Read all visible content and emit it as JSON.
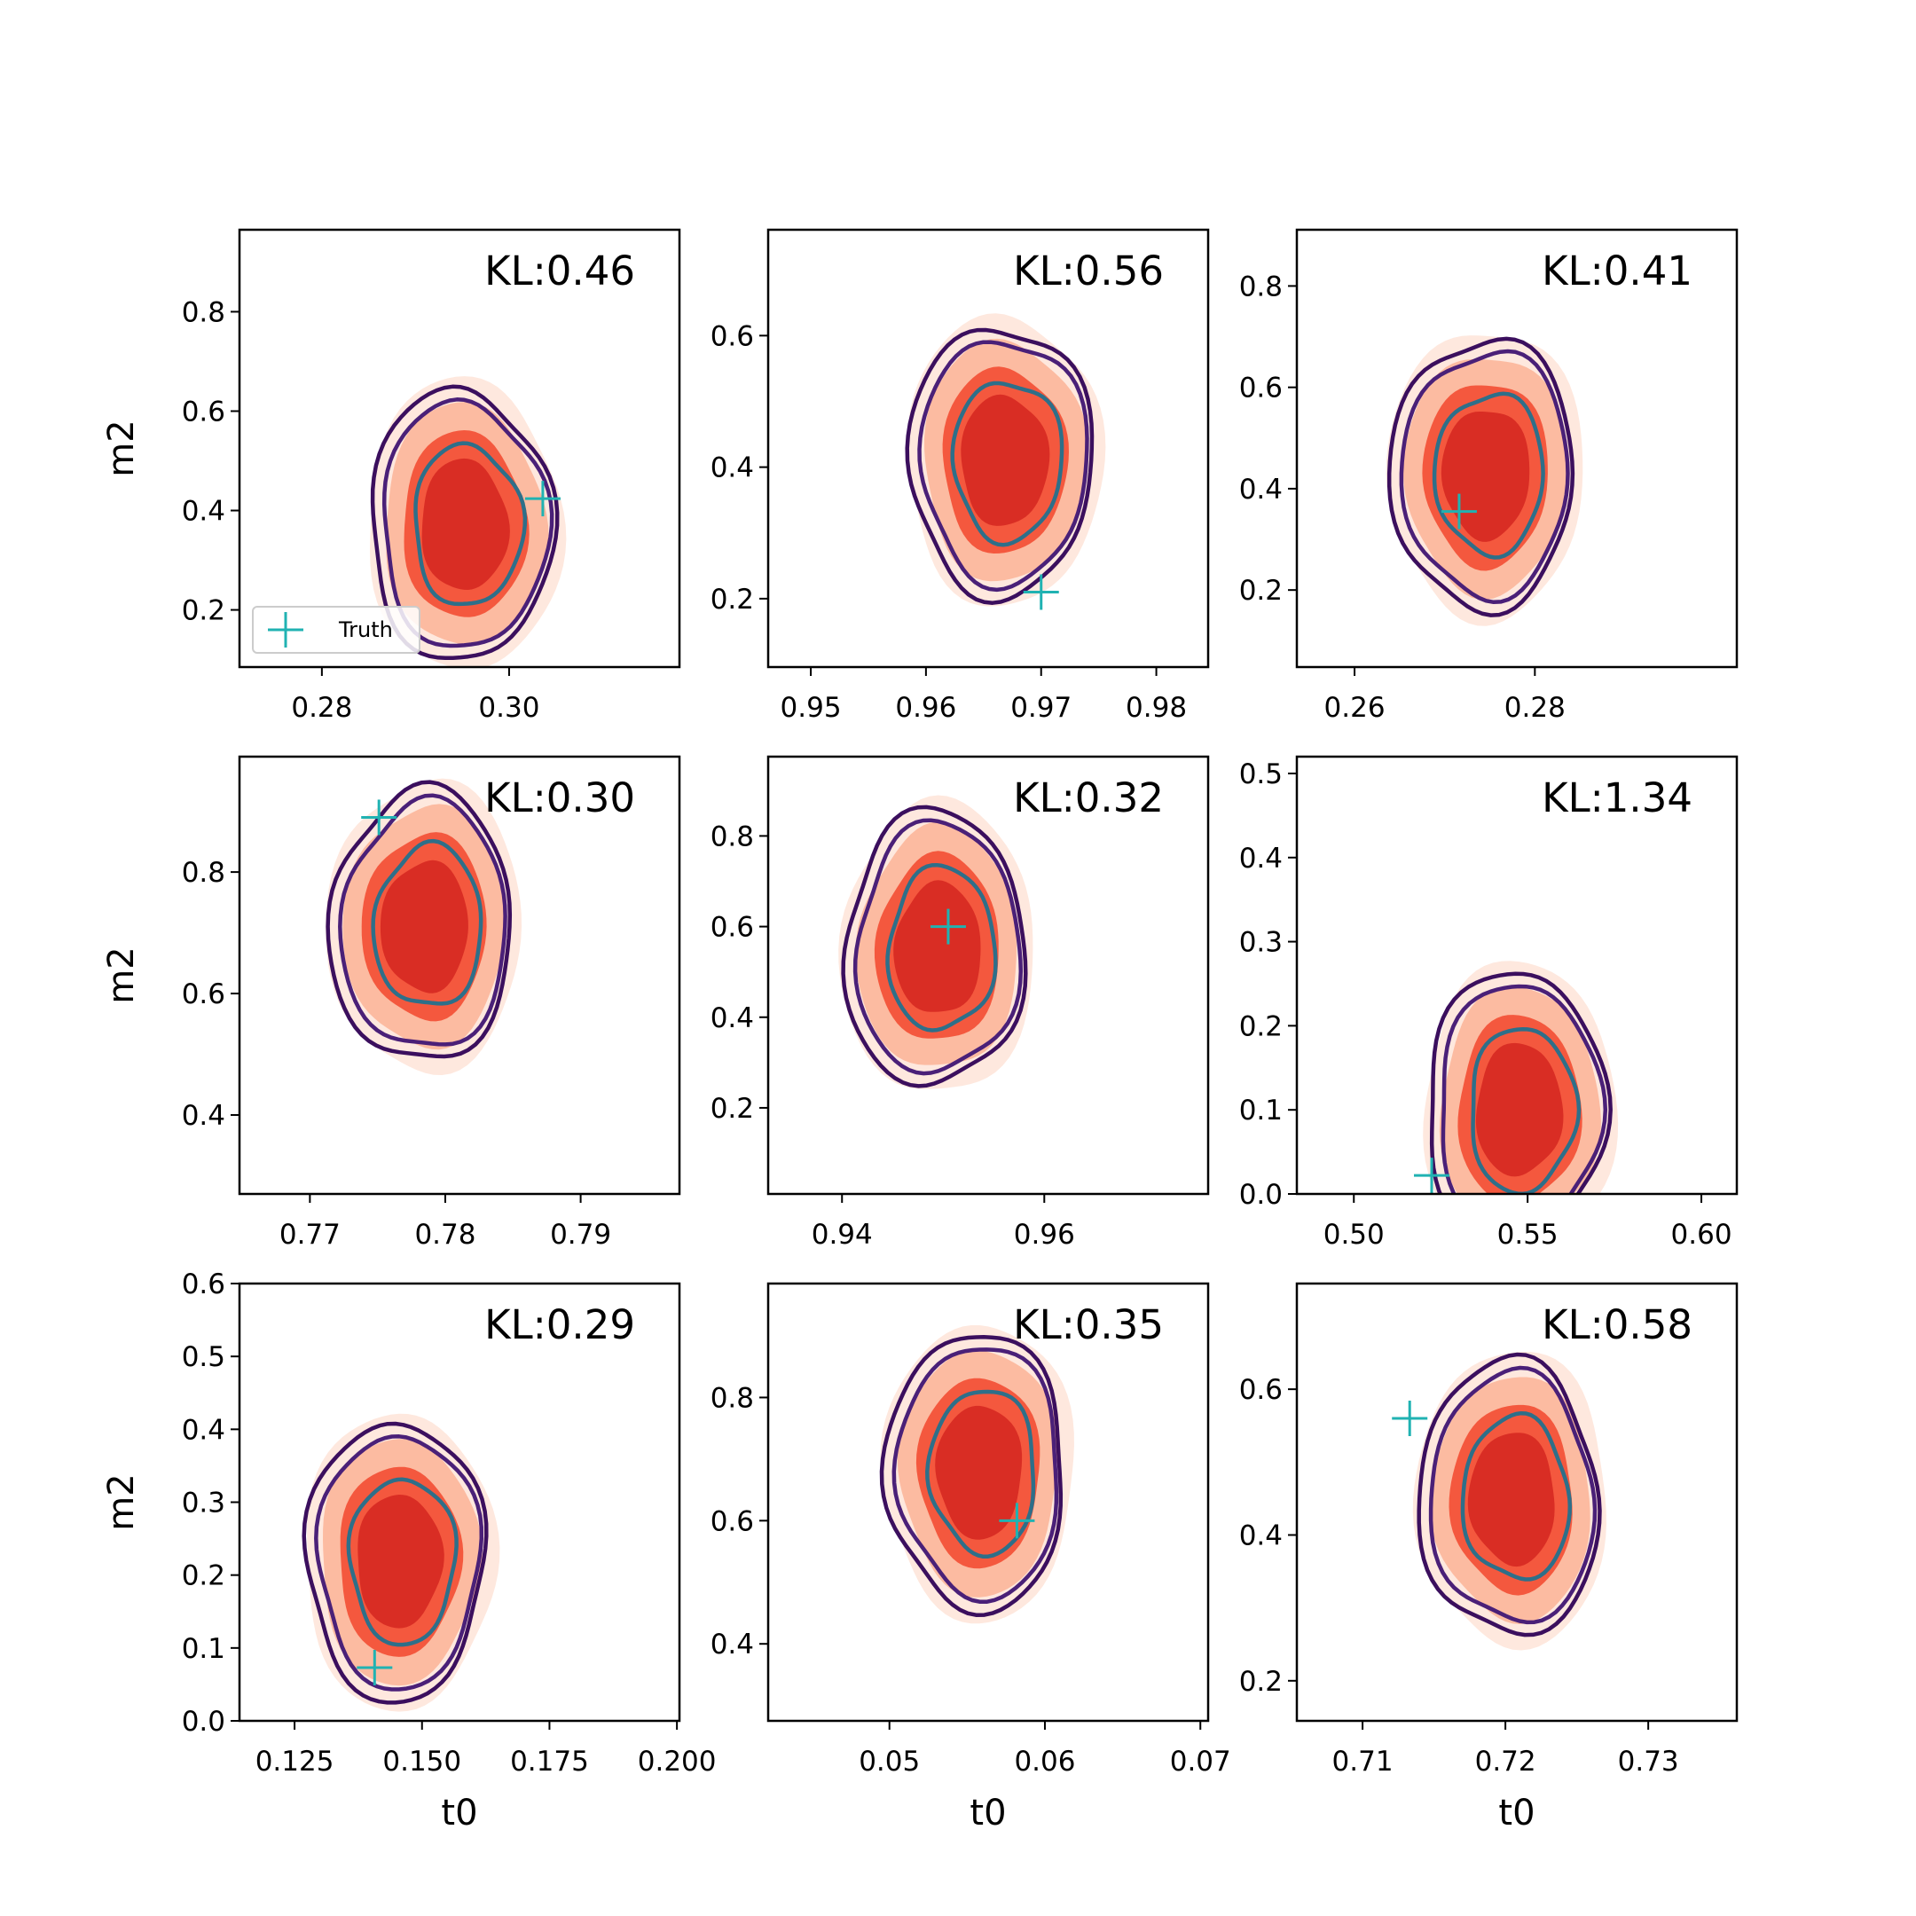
{
  "chart_data": [
    {
      "type": "contour",
      "kl_label": "KL:0.46",
      "xlabel": "",
      "ylabel": "m2",
      "xlim": [
        0.2712,
        0.3182
      ],
      "ylim": [
        0.085,
        0.965
      ],
      "xticks": [
        0.28,
        0.3
      ],
      "xtick_labels": [
        "0.28",
        "0.30"
      ],
      "yticks": [
        0.2,
        0.4,
        0.6,
        0.8
      ],
      "ytick_labels": [
        "0.2",
        "0.4",
        "0.6",
        "0.8"
      ],
      "truth": [
        0.3036,
        0.424
      ],
      "center": [
        0.2952,
        0.37
      ],
      "legend": {
        "entries": [
          "Truth"
        ],
        "location": "lower left"
      }
    },
    {
      "type": "contour",
      "kl_label": "KL:0.56",
      "xlabel": "",
      "ylabel": "",
      "xlim": [
        0.9463,
        0.9845
      ],
      "ylim": [
        0.096,
        0.761
      ],
      "xticks": [
        0.95,
        0.96,
        0.97,
        0.98
      ],
      "xtick_labels": [
        "0.95",
        "0.96",
        "0.97",
        "0.98"
      ],
      "yticks": [
        0.2,
        0.4,
        0.6
      ],
      "ytick_labels": [
        "0.2",
        "0.4",
        "0.6"
      ],
      "truth": [
        0.97,
        0.21
      ],
      "center": [
        0.9668,
        0.41
      ]
    },
    {
      "type": "contour",
      "kl_label": "KL:0.41",
      "xlabel": "",
      "ylabel": "",
      "xlim": [
        0.2536,
        0.3024
      ],
      "ylim": [
        0.048,
        0.911
      ],
      "xticks": [
        0.26,
        0.28
      ],
      "xtick_labels": [
        "0.26",
        "0.28"
      ],
      "yticks": [
        0.2,
        0.4,
        0.6,
        0.8
      ],
      "ytick_labels": [
        "0.2",
        "0.4",
        "0.6",
        "0.8"
      ],
      "truth": [
        0.2716,
        0.355
      ],
      "center": [
        0.2746,
        0.43
      ]
    },
    {
      "type": "contour",
      "kl_label": "KL:0.30",
      "xlabel": "",
      "ylabel": "m2",
      "xlim": [
        0.7648,
        0.7973
      ],
      "ylim": [
        0.27,
        0.99
      ],
      "xticks": [
        0.77,
        0.78,
        0.79
      ],
      "xtick_labels": [
        "0.77",
        "0.78",
        "0.79"
      ],
      "yticks": [
        0.4,
        0.6,
        0.8
      ],
      "ytick_labels": [
        "0.4",
        "0.6",
        "0.8"
      ],
      "truth": [
        0.7751,
        0.89
      ],
      "center": [
        0.7785,
        0.71
      ]
    },
    {
      "type": "contour",
      "kl_label": "KL:0.32",
      "xlabel": "",
      "ylabel": "",
      "xlim": [
        0.9327,
        0.9762
      ],
      "ylim": [
        0.01,
        0.975
      ],
      "xticks": [
        0.94,
        0.96
      ],
      "xtick_labels": [
        "0.94",
        "0.96"
      ],
      "yticks": [
        0.2,
        0.4,
        0.6,
        0.8
      ],
      "ytick_labels": [
        "0.2",
        "0.4",
        "0.6",
        "0.8"
      ],
      "truth": [
        0.9505,
        0.6
      ],
      "center": [
        0.9495,
        0.55
      ]
    },
    {
      "type": "contour",
      "kl_label": "KL:1.34",
      "xlabel": "",
      "ylabel": "",
      "xlim": [
        0.4836,
        0.6102
      ],
      "ylim": [
        0.0,
        0.52
      ],
      "xticks": [
        0.5,
        0.55,
        0.6
      ],
      "xtick_labels": [
        "0.50",
        "0.55",
        "0.60"
      ],
      "yticks": [
        0.0,
        0.1,
        0.2,
        0.3,
        0.4,
        0.5
      ],
      "ytick_labels": [
        "0.0",
        "0.1",
        "0.2",
        "0.3",
        "0.4",
        "0.5"
      ],
      "truth": [
        0.5224,
        0.022
      ],
      "center": [
        0.5475,
        0.1
      ]
    },
    {
      "type": "contour",
      "kl_label": "KL:0.29",
      "xlabel": "t0",
      "ylabel": "m2",
      "xlim": [
        0.1142,
        0.2005
      ],
      "ylim": [
        0.0,
        0.6
      ],
      "xticks": [
        0.125,
        0.15,
        0.175,
        0.2
      ],
      "xtick_labels": [
        "0.125",
        "0.150",
        "0.175",
        "0.200"
      ],
      "yticks": [
        0.0,
        0.1,
        0.2,
        0.3,
        0.4,
        0.5,
        0.6
      ],
      "ytick_labels": [
        "0.0",
        "0.1",
        "0.2",
        "0.3",
        "0.4",
        "0.5",
        "0.6"
      ],
      "truth": [
        0.1407,
        0.073
      ],
      "center": [
        0.1455,
        0.22
      ]
    },
    {
      "type": "contour",
      "kl_label": "KL:0.35",
      "xlabel": "t0",
      "ylabel": "",
      "xlim": [
        0.0422,
        0.0705
      ],
      "ylim": [
        0.275,
        0.985
      ],
      "xticks": [
        0.05,
        0.06,
        0.07
      ],
      "xtick_labels": [
        "0.05",
        "0.06",
        "0.07"
      ],
      "yticks": [
        0.4,
        0.6,
        0.8
      ],
      "ytick_labels": [
        "0.4",
        "0.6",
        "0.8"
      ],
      "truth": [
        0.0582,
        0.6
      ],
      "center": [
        0.0558,
        0.68
      ]
    },
    {
      "type": "contour",
      "kl_label": "KL:0.58",
      "xlabel": "t0",
      "ylabel": "",
      "xlim": [
        0.7054,
        0.7362
      ],
      "ylim": [
        0.145,
        0.745
      ],
      "xticks": [
        0.71,
        0.72,
        0.73
      ],
      "xtick_labels": [
        "0.71",
        "0.72",
        "0.73"
      ],
      "yticks": [
        0.2,
        0.4,
        0.6
      ],
      "ytick_labels": [
        "0.2",
        "0.4",
        "0.6"
      ],
      "truth": [
        0.7133,
        0.56
      ],
      "center": [
        0.7205,
        0.45
      ]
    }
  ],
  "style": {
    "fill_levels": [
      "#fee8de",
      "#fcbba1",
      "#f4583e",
      "#d92d24"
    ],
    "line_outer": "#3b0f5e",
    "line_mid": "#4a2078",
    "line_inner": "#2e6f89",
    "truth_color": "#20b2b2"
  }
}
